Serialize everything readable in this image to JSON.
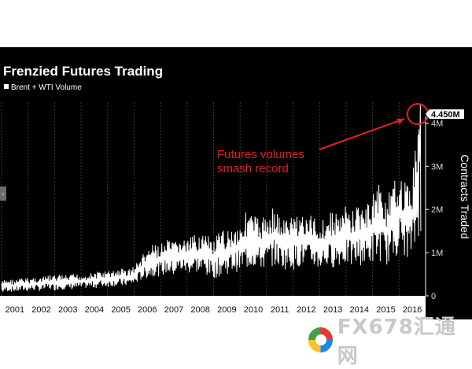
{
  "chart_data": {
    "type": "line",
    "title": "Frenzied Futures Trading",
    "legend": [
      "Brent + WTI Volume"
    ],
    "ylabel": "Contracts Traded",
    "ylim": [
      0,
      4700000
    ],
    "y_ticks": [
      "0",
      "1M",
      "2M",
      "3M",
      "4M"
    ],
    "y_tick_values": [
      0,
      1000000,
      2000000,
      3000000,
      4000000
    ],
    "x_ticks": [
      "2001",
      "2002",
      "2003",
      "2004",
      "2005",
      "2006",
      "2007",
      "2008",
      "2009",
      "2010",
      "2011",
      "2012",
      "2013",
      "2014",
      "2015",
      "2016"
    ],
    "x_range": [
      2001.0,
      2017.0
    ],
    "series": [
      {
        "name": "Brent + WTI Volume",
        "x": [
          2001.0,
          2001.25,
          2001.5,
          2001.75,
          2002.0,
          2002.25,
          2002.5,
          2002.75,
          2003.0,
          2003.25,
          2003.5,
          2003.75,
          2004.0,
          2004.25,
          2004.5,
          2004.75,
          2005.0,
          2005.25,
          2005.5,
          2005.75,
          2006.0,
          2006.25,
          2006.5,
          2006.75,
          2007.0,
          2007.25,
          2007.5,
          2007.75,
          2008.0,
          2008.25,
          2008.5,
          2008.75,
          2009.0,
          2009.25,
          2009.5,
          2009.75,
          2010.0,
          2010.25,
          2010.5,
          2010.75,
          2011.0,
          2011.25,
          2011.5,
          2011.75,
          2012.0,
          2012.25,
          2012.5,
          2012.75,
          2013.0,
          2013.25,
          2013.5,
          2013.75,
          2014.0,
          2014.25,
          2014.5,
          2014.75,
          2015.0,
          2015.25,
          2015.5,
          2015.75,
          2016.0,
          2016.25,
          2016.5,
          2016.75
        ],
        "low": [
          50000,
          100000,
          80000,
          100000,
          100000,
          120000,
          100000,
          150000,
          120000,
          150000,
          130000,
          150000,
          150000,
          180000,
          170000,
          200000,
          200000,
          220000,
          200000,
          230000,
          250000,
          350000,
          400000,
          450000,
          450000,
          500000,
          450000,
          550000,
          500000,
          550000,
          500000,
          450000,
          400000,
          450000,
          500000,
          550000,
          550000,
          600000,
          650000,
          600000,
          600000,
          700000,
          650000,
          600000,
          600000,
          650000,
          700000,
          650000,
          600000,
          650000,
          650000,
          700000,
          700000,
          650000,
          700000,
          700000,
          750000,
          800000,
          700000,
          800000,
          1000000,
          900000,
          850000,
          1300000
        ],
        "high": [
          350000,
          400000,
          380000,
          420000,
          420000,
          450000,
          430000,
          480000,
          480000,
          500000,
          470000,
          520000,
          500000,
          520000,
          550000,
          580000,
          580000,
          600000,
          650000,
          620000,
          700000,
          900000,
          1100000,
          1200000,
          1200000,
          1300000,
          1250000,
          1350000,
          1300000,
          1400000,
          1500000,
          1400000,
          1300000,
          1500000,
          1550000,
          1600000,
          1700000,
          2000000,
          1900000,
          1800000,
          1900000,
          2100000,
          1850000,
          1800000,
          1900000,
          2000000,
          1800000,
          1900000,
          1750000,
          1850000,
          2000000,
          1900000,
          2100000,
          2000000,
          2200000,
          2050000,
          2400000,
          2700000,
          2300000,
          2500000,
          3000000,
          2600000,
          2800000,
          4450000
        ]
      }
    ],
    "annotations": [
      "Futures volumes",
      "smash record"
    ],
    "callout_label": "4.450M",
    "callout_value": 4450000,
    "grid": "vertical"
  },
  "colors": {
    "background": "#000000",
    "line": "#ffffff",
    "annotation": "#e8201f",
    "axis_band": "#ffffff"
  },
  "watermark": {
    "text": "FX678汇通网"
  }
}
